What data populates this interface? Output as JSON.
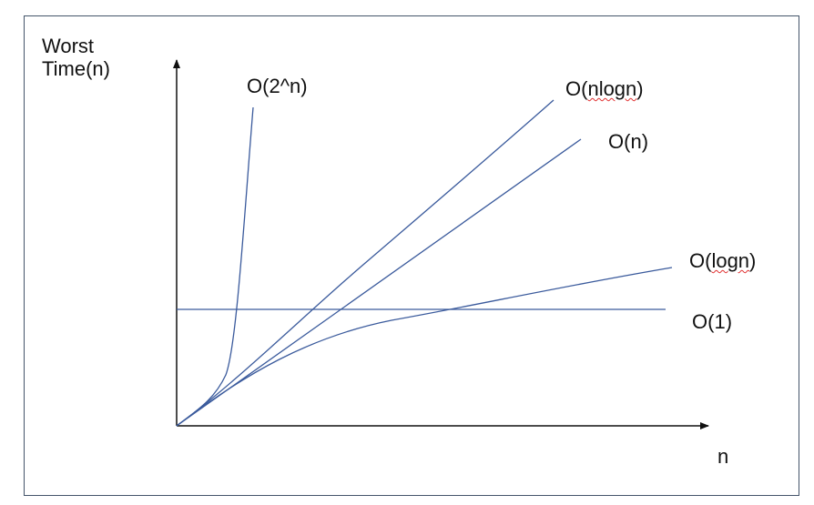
{
  "diagram": {
    "y_axis_label_line1": "Worst",
    "y_axis_label_line2": "Time(n)",
    "x_axis_label": "n",
    "curves": [
      {
        "id": "exp",
        "prefix": "O(",
        "body": "2^n",
        "suffix": ")",
        "spellcheck": false
      },
      {
        "id": "nlogn",
        "prefix": "O(",
        "body": "nlogn",
        "suffix": ")",
        "spellcheck": true
      },
      {
        "id": "linear",
        "prefix": "O(",
        "body": "n",
        "suffix": ")",
        "spellcheck": false
      },
      {
        "id": "logn",
        "prefix": "O(",
        "body": "logn",
        "suffix": ")",
        "spellcheck": true
      },
      {
        "id": "const",
        "prefix": "O(",
        "body": "1",
        "suffix": ")",
        "spellcheck": false
      }
    ],
    "colors": {
      "curve": "#3a5a9c",
      "axis": "#111111",
      "frame": "#44546a",
      "spellcheck_underline": "#e03030"
    }
  }
}
